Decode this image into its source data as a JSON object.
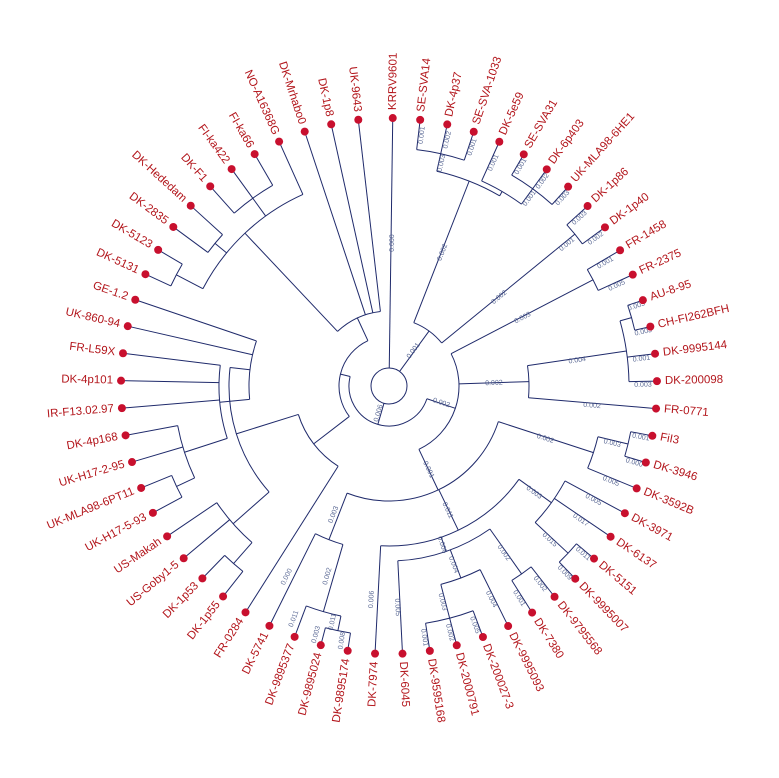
{
  "tree": {
    "leaves": [
      {
        "label": "KRRV9601"
      },
      {
        "label": "SE-SVA14"
      },
      {
        "label": "DK-4p37"
      },
      {
        "label": "SE-SVA-1033"
      },
      {
        "label": "DK-5e59"
      },
      {
        "label": "SE-SVA31"
      },
      {
        "label": "DK-6p403"
      },
      {
        "label": "UK-MLA98-6HE1"
      },
      {
        "label": "DK-1p86"
      },
      {
        "label": "DK-1p40"
      },
      {
        "label": "FR-1458"
      },
      {
        "label": "FR-2375"
      },
      {
        "label": "AU-8-95"
      },
      {
        "label": "CH-FI262BFH"
      },
      {
        "label": "DK-9995144"
      },
      {
        "label": "DK-200098"
      },
      {
        "label": "FR-0771"
      },
      {
        "label": "FiI3"
      },
      {
        "label": "DK-3946"
      },
      {
        "label": "DK-3592B"
      },
      {
        "label": "DK-3971"
      },
      {
        "label": "DK-6137"
      },
      {
        "label": "DK-5151"
      },
      {
        "label": "DK-9995007"
      },
      {
        "label": "DK-9795568"
      },
      {
        "label": "DK-7380"
      },
      {
        "label": "DK-9995093"
      },
      {
        "label": "DK-200027-3"
      },
      {
        "label": "DK-2000791"
      },
      {
        "label": "DK-9595168"
      },
      {
        "label": "DK-6045"
      },
      {
        "label": "DK-7974"
      },
      {
        "label": "DK-9895174"
      },
      {
        "label": "DK-9895024"
      },
      {
        "label": "DK-9895377"
      },
      {
        "label": "DK-5741"
      },
      {
        "label": "FR-0284"
      },
      {
        "label": "DK-1p55"
      },
      {
        "label": "DK-1p53"
      },
      {
        "label": "US-Goby1-5"
      },
      {
        "label": "US-Makah"
      },
      {
        "label": "UK-H17-5-93"
      },
      {
        "label": "UK-MLA98-6PT11"
      },
      {
        "label": "UK-H17-2-95"
      },
      {
        "label": "DK-4p168"
      },
      {
        "label": "IR-F13.02.97"
      },
      {
        "label": "DK-4p101"
      },
      {
        "label": "FR-L59X"
      },
      {
        "label": "UK-860-94"
      },
      {
        "label": "GE-1.2"
      },
      {
        "label": "DK-5131"
      },
      {
        "label": "DK-5123"
      },
      {
        "label": "DK-2835"
      },
      {
        "label": "DK-Hededam"
      },
      {
        "label": "DK-F1"
      },
      {
        "label": "FI-ka422"
      },
      {
        "label": "FI-ka66"
      },
      {
        "label": "NO-A16368G"
      },
      {
        "label": "DK-Mrhabo0"
      },
      {
        "label": "DK-1p8"
      },
      {
        "label": "UK-9643"
      }
    ],
    "branch_lengths": [
      "0.000",
      "0.001",
      "0.002",
      "0.003",
      "0.001",
      "0.002",
      "0.001",
      "0.001",
      "0.001",
      "0.001",
      "0.002",
      "0.003",
      "0.002",
      "0.001",
      "0.003",
      "0.002",
      "0.006",
      "0.002",
      "0.003",
      "0.001",
      "0.005",
      "0.002",
      "0.004",
      "0.005",
      "0.003",
      "0.001",
      "0.003",
      "0.002",
      "0.001",
      "0.002",
      "0.003",
      "0.001",
      "0.000",
      "0.005",
      "0.011",
      "0.003",
      "0.005",
      "0.017",
      "0.015",
      "0.011",
      "0.009",
      "0.006",
      "0.002",
      "0.002",
      "0.001",
      "0.004",
      "0.004",
      "0.003",
      "0.005",
      "0.002",
      "0.001",
      "0.005",
      "0.006",
      "0.003",
      "0.002",
      "0.011",
      "0.008",
      "0.003",
      "0.011",
      "0.000"
    ]
  }
}
